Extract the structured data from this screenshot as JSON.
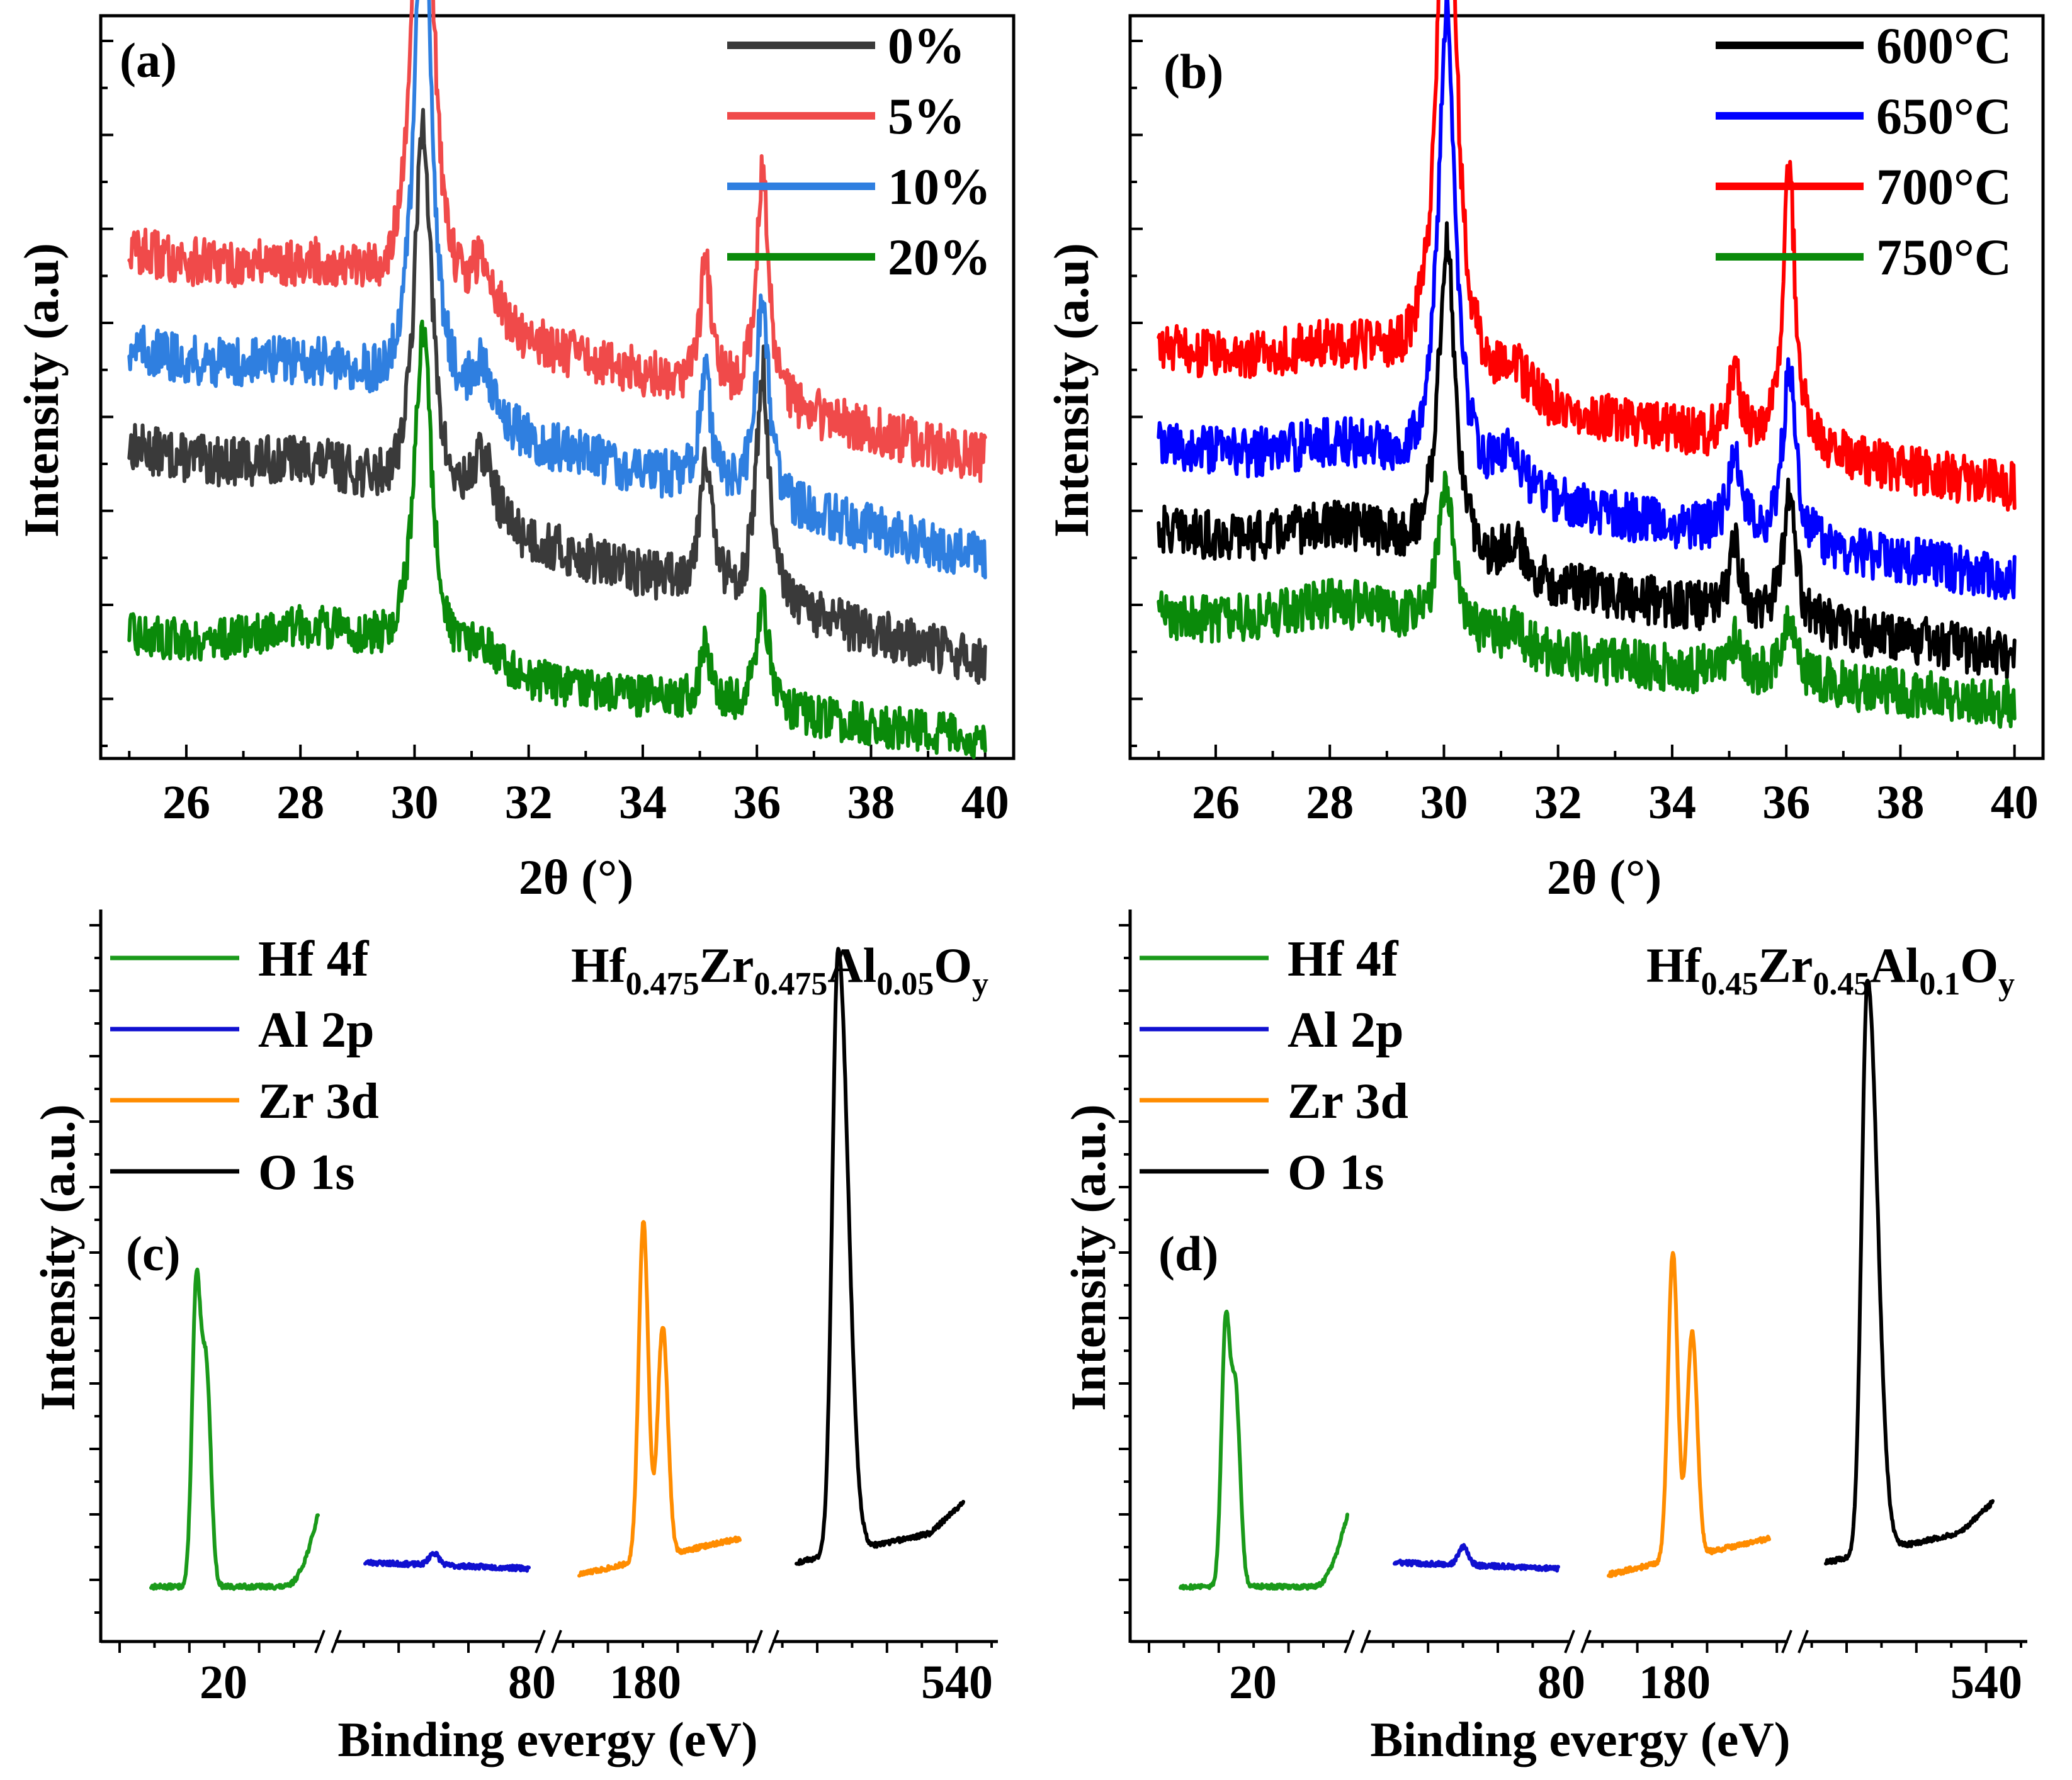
{
  "chart_data": [
    {
      "panel": "(a)",
      "type": "line",
      "xlabel": "2θ (°)",
      "ylabel": "Intensity (a.u)",
      "x_range": [
        24.5,
        40.5
      ],
      "x_ticks": [
        "26",
        "28",
        "30",
        "32",
        "34",
        "36",
        "38",
        "40"
      ],
      "y_ticks_labeled": false,
      "legend_position": "top-right",
      "peaks_deg": [
        30.15,
        35.1,
        36.1
      ],
      "series": [
        {
          "name": "0%",
          "color": "#3a3a3a",
          "baseline_start": 0.42,
          "baseline_end": 0.11,
          "peak_heights": [
            0.56,
            0.2,
            0.34
          ],
          "noise": 0.035
        },
        {
          "name": "5%",
          "color": "#f04a4a",
          "baseline_start": 0.7,
          "baseline_end": 0.4,
          "peak_heights": [
            0.92,
            0.18,
            0.34
          ],
          "noise": 0.035
        },
        {
          "name": "10%",
          "color": "#2f7fe0",
          "baseline_start": 0.56,
          "baseline_end": 0.26,
          "peak_heights": [
            0.78,
            0.16,
            0.3
          ],
          "noise": 0.035
        },
        {
          "name": "20%",
          "color": "#0a8a0a",
          "baseline_start": 0.15,
          "baseline_end": 0.0,
          "peak_heights": [
            0.48,
            0.08,
            0.16
          ],
          "noise": 0.03
        }
      ]
    },
    {
      "panel": "(b)",
      "type": "line",
      "xlabel": "2θ (°)",
      "ylabel": "Intensity (a.u)",
      "x_range": [
        24.5,
        40.5
      ],
      "x_ticks": [
        "26",
        "28",
        "30",
        "32",
        "34",
        "36",
        "38",
        "40"
      ],
      "y_ticks_labeled": false,
      "legend_position": "top-right",
      "peaks_deg": [
        30.05,
        35.1,
        36.05
      ],
      "series": [
        {
          "name": "600°C",
          "color": "#000000",
          "baseline_start": 0.3,
          "baseline_end": 0.12,
          "peak_heights": [
            0.46,
            0.1,
            0.18
          ],
          "noise": 0.035
        },
        {
          "name": "650°C",
          "color": "#0000ff",
          "baseline_start": 0.42,
          "baseline_end": 0.23,
          "peak_heights": [
            0.68,
            0.12,
            0.26
          ],
          "noise": 0.035
        },
        {
          "name": "700°C",
          "color": "#ff0000",
          "baseline_start": 0.56,
          "baseline_end": 0.36,
          "peak_heights": [
            0.94,
            0.1,
            0.4
          ],
          "noise": 0.035
        },
        {
          "name": "750°C",
          "color": "#0a8a0a",
          "baseline_start": 0.18,
          "baseline_end": 0.05,
          "peak_heights": [
            0.22,
            0.05,
            0.1
          ],
          "noise": 0.035
        }
      ]
    },
    {
      "panel": "(c)",
      "type": "line",
      "xlabel": "Binding evergy (eV)",
      "ylabel": "Intensity (a.u.)",
      "composition": {
        "prefix": "Hf",
        "hf": "0.475",
        "zr_sym": "Zr",
        "zr": "0.475",
        "al_sym": "Al",
        "al": "0.05",
        "o_sym": "O",
        "o": "y"
      },
      "axis_breaks": 3,
      "x_ticks": [
        "20",
        "80",
        "180",
        "540"
      ],
      "legend_position": "top-left",
      "series": [
        {
          "name": "Hf 4f",
          "color": "#1a9a1a",
          "region": "Hf",
          "peak_heights": [
            0.48,
            0.36
          ]
        },
        {
          "name": "Al 2p",
          "color": "#1010d0",
          "region": "Al",
          "peak_heights": [
            0.02
          ]
        },
        {
          "name": "Zr 3d",
          "color": "#ff8c00",
          "region": "Zr",
          "peak_heights": [
            0.56,
            0.38
          ]
        },
        {
          "name": "O 1s",
          "color": "#000000",
          "region": "O",
          "peak_heights": [
            1.0
          ]
        }
      ]
    },
    {
      "panel": "(d)",
      "type": "line",
      "xlabel": "Binding evergy (eV)",
      "ylabel": "Intensity (a.u.)",
      "composition": {
        "prefix": "Hf",
        "hf": "0.45",
        "zr_sym": "Zr",
        "zr": "0.45",
        "al_sym": "Al",
        "al": "0.1",
        "o_sym": "O",
        "o": "y"
      },
      "axis_breaks": 3,
      "x_ticks": [
        "20",
        "80",
        "180",
        "540"
      ],
      "legend_position": "top-left",
      "series": [
        {
          "name": "Hf 4f",
          "color": "#1a9a1a",
          "region": "Hf",
          "peak_heights": [
            0.42,
            0.32
          ]
        },
        {
          "name": "Al 2p",
          "color": "#1010d0",
          "region": "Al",
          "peak_heights": [
            0.03
          ]
        },
        {
          "name": "Zr 3d",
          "color": "#ff8c00",
          "region": "Zr",
          "peak_heights": [
            0.51,
            0.37
          ]
        },
        {
          "name": "O 1s",
          "color": "#000000",
          "region": "O",
          "peak_heights": [
            0.95
          ]
        }
      ]
    }
  ]
}
